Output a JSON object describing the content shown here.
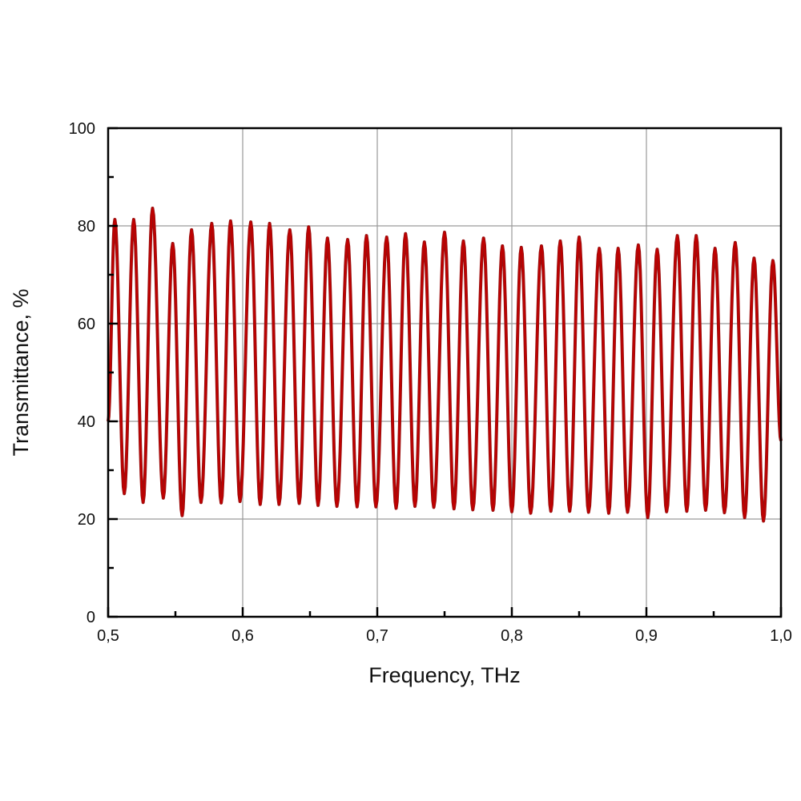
{
  "chart_data": {
    "type": "line",
    "title": "",
    "xlabel": "Frequency, THz",
    "ylabel": "Transmittance, %",
    "xlim": [
      0.5,
      1.0
    ],
    "ylim": [
      0,
      100
    ],
    "grid": true,
    "legend": null,
    "x_ticks": [
      "0,5",
      "0,6",
      "0,7",
      "0,8",
      "0,9",
      "1,0"
    ],
    "x_tick_values": [
      0.5,
      0.6,
      0.7,
      0.8,
      0.9,
      1.0
    ],
    "y_ticks": [
      "0",
      "20",
      "40",
      "60",
      "80",
      "100"
    ],
    "y_tick_values": [
      0,
      20,
      40,
      60,
      80,
      100
    ],
    "series": [
      {
        "name": "Transmittance",
        "color": "#c00000",
        "description": "Fabry-Perot-like oscillation, ~35 periods between 0.5 and 1.0 THz",
        "peaks": {
          "x": [
            0.505,
            0.519,
            0.533,
            0.548,
            0.562,
            0.577,
            0.591,
            0.606,
            0.62,
            0.635,
            0.649,
            0.663,
            0.678,
            0.692,
            0.707,
            0.721,
            0.735,
            0.75,
            0.764,
            0.779,
            0.793,
            0.807,
            0.822,
            0.836,
            0.85,
            0.865,
            0.879,
            0.894,
            0.908,
            0.923,
            0.937,
            0.951,
            0.966,
            0.98,
            0.994
          ],
          "y": [
            81.3,
            81.3,
            83.6,
            76.4,
            79.2,
            80.5,
            81.0,
            80.8,
            80.5,
            79.2,
            79.8,
            77.5,
            77.2,
            78.0,
            77.7,
            78.4,
            76.7,
            78.7,
            76.9,
            77.5,
            75.9,
            75.6,
            75.9,
            76.9,
            77.7,
            75.4,
            75.4,
            76.1,
            75.2,
            78.0,
            78.0,
            75.4,
            76.6,
            73.4,
            72.9
          ]
        },
        "troughs": {
          "x": [
            0.512,
            0.526,
            0.541,
            0.555,
            0.569,
            0.584,
            0.598,
            0.613,
            0.627,
            0.642,
            0.656,
            0.67,
            0.685,
            0.699,
            0.714,
            0.728,
            0.742,
            0.757,
            0.771,
            0.786,
            0.8,
            0.814,
            0.829,
            0.843,
            0.857,
            0.872,
            0.886,
            0.901,
            0.915,
            0.93,
            0.944,
            0.958,
            0.973,
            0.987
          ],
          "y": [
            25.2,
            23.4,
            24.3,
            20.7,
            23.4,
            23.3,
            23.6,
            23.0,
            23.0,
            23.2,
            22.8,
            22.6,
            22.5,
            22.5,
            22.2,
            22.6,
            22.4,
            22.1,
            21.9,
            21.8,
            21.5,
            21.2,
            21.6,
            21.6,
            21.4,
            21.2,
            21.4,
            20.3,
            21.5,
            21.6,
            21.8,
            21.3,
            20.3,
            19.6
          ]
        },
        "start": {
          "x": 0.5,
          "y": 40
        },
        "end": {
          "x": 1.0,
          "y": 36
        }
      }
    ]
  },
  "axes": {
    "xlabel": "Frequency, THz",
    "ylabel": "Transmittance, %"
  }
}
